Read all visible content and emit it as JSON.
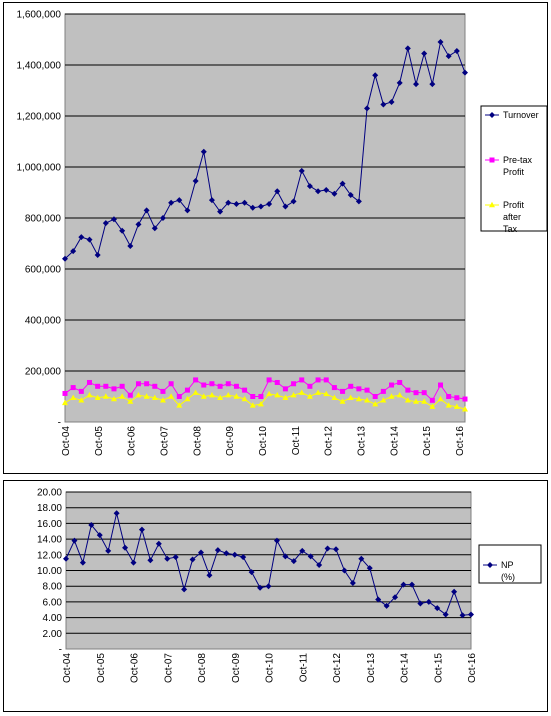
{
  "colors": {
    "plot_bg": "#c0c0c0",
    "grid": "#000000",
    "turnover": "#000080",
    "pretax": "#ff00ff",
    "aftertax": "#ffff00",
    "np": "#000080"
  },
  "chart_data": [
    {
      "type": "line",
      "title": "",
      "xlabel": "",
      "ylabel": "",
      "ylim": [
        0,
        1600000
      ],
      "y_ticks": [
        "-",
        "200,000",
        "400,000",
        "600,000",
        "800,000",
        "1,000,000",
        "1,200,000",
        "1,400,000",
        "1,600,000"
      ],
      "x_ticks": [
        "Oct-04",
        "Oct-05",
        "Oct-06",
        "Oct-07",
        "Oct-08",
        "Oct-09",
        "Oct-10",
        "Oct-11",
        "Oct-12",
        "Oct-13",
        "Oct-14",
        "Oct-15",
        "Oct-16"
      ],
      "grid": true,
      "legend": "right",
      "x_range": [
        0,
        49
      ],
      "series": [
        {
          "name": "Turnover",
          "x": [
            0,
            1,
            2,
            3,
            4,
            5,
            6,
            7,
            8,
            9,
            10,
            11,
            12,
            13,
            14,
            15,
            16,
            17,
            18,
            19,
            20,
            21,
            22,
            23,
            24,
            25,
            26,
            27,
            28,
            29,
            30,
            31,
            32,
            33,
            34,
            35,
            36,
            37,
            38,
            39,
            40,
            41,
            42,
            43,
            44,
            45,
            46,
            47,
            48,
            49
          ],
          "values": [
            640000,
            670000,
            725000,
            715000,
            655000,
            780000,
            795000,
            750000,
            690000,
            775000,
            830000,
            760000,
            800000,
            860000,
            870000,
            830000,
            945000,
            1060000,
            870000,
            825000,
            860000,
            855000,
            860000,
            840000,
            845000,
            855000,
            905000,
            845000,
            865000,
            985000,
            925000,
            905000,
            910000,
            895000,
            935000,
            890000,
            865000,
            1230000,
            1360000,
            1245000,
            1255000,
            1330000,
            1465000,
            1325000,
            1445000,
            1325000,
            1490000,
            1435000,
            1455000,
            1370000
          ]
        },
        {
          "name": "Pre-tax Profit",
          "x": [
            0,
            1,
            2,
            3,
            4,
            5,
            6,
            7,
            8,
            9,
            10,
            11,
            12,
            13,
            14,
            15,
            16,
            17,
            18,
            19,
            20,
            21,
            22,
            23,
            24,
            25,
            26,
            27,
            28,
            29,
            30,
            31,
            32,
            33,
            34,
            35,
            36,
            37,
            38,
            39,
            40,
            41,
            42,
            43,
            44,
            45,
            46,
            47,
            48,
            49
          ],
          "values": [
            112000,
            135000,
            120000,
            155000,
            140000,
            140000,
            130000,
            140000,
            105000,
            150000,
            150000,
            140000,
            120000,
            150000,
            100000,
            125000,
            165000,
            145000,
            150000,
            140000,
            150000,
            140000,
            125000,
            100000,
            100000,
            165000,
            155000,
            130000,
            150000,
            165000,
            140000,
            165000,
            165000,
            135000,
            120000,
            140000,
            130000,
            125000,
            100000,
            120000,
            145000,
            155000,
            125000,
            115000,
            115000,
            85000,
            145000,
            100000,
            95000,
            90000
          ]
        },
        {
          "name": "Profit after Tax",
          "x": [
            0,
            1,
            2,
            3,
            4,
            5,
            6,
            7,
            8,
            9,
            10,
            11,
            12,
            13,
            14,
            15,
            16,
            17,
            18,
            19,
            20,
            21,
            22,
            23,
            24,
            25,
            26,
            27,
            28,
            29,
            30,
            31,
            32,
            33,
            34,
            35,
            36,
            37,
            38,
            39,
            40,
            41,
            42,
            43,
            44,
            45,
            46,
            47,
            48,
            49
          ],
          "values": [
            75000,
            95000,
            85000,
            105000,
            95000,
            100000,
            90000,
            100000,
            80000,
            105000,
            100000,
            95000,
            85000,
            100000,
            65000,
            90000,
            115000,
            100000,
            105000,
            95000,
            105000,
            100000,
            90000,
            65000,
            70000,
            110000,
            105000,
            95000,
            105000,
            115000,
            100000,
            115000,
            110000,
            95000,
            80000,
            95000,
            90000,
            85000,
            70000,
            85000,
            100000,
            105000,
            85000,
            80000,
            80000,
            60000,
            90000,
            65000,
            60000,
            50000
          ]
        }
      ]
    },
    {
      "type": "line",
      "title": "",
      "xlabel": "",
      "ylabel": "",
      "ylim": [
        0,
        20
      ],
      "y_ticks": [
        "-",
        "2.00",
        "4.00",
        "6.00",
        "8.00",
        "10.00",
        "12.00",
        "14.00",
        "16.00",
        "18.00",
        "20.00"
      ],
      "x_ticks": [
        "Oct-04",
        "Oct-05",
        "Oct-06",
        "Oct-07",
        "Oct-08",
        "Oct-09",
        "Oct-10",
        "Oct-11",
        "Oct-12",
        "Oct-13",
        "Oct-14",
        "Oct-15",
        "Oct-16"
      ],
      "grid": true,
      "legend": "right",
      "x_range": [
        0,
        48
      ],
      "series": [
        {
          "name": "NP (%)",
          "x": [
            0,
            1,
            2,
            3,
            4,
            5,
            6,
            7,
            8,
            9,
            10,
            11,
            12,
            13,
            14,
            15,
            16,
            17,
            18,
            19,
            20,
            21,
            22,
            23,
            24,
            25,
            26,
            27,
            28,
            29,
            30,
            31,
            32,
            33,
            34,
            35,
            36,
            37,
            38,
            39,
            40,
            41,
            42,
            43,
            44,
            45,
            46,
            47,
            48
          ],
          "values": [
            11.5,
            13.8,
            11.0,
            15.8,
            14.5,
            12.5,
            17.3,
            12.9,
            11.0,
            15.2,
            11.3,
            13.4,
            11.5,
            11.7,
            7.6,
            11.4,
            12.3,
            9.4,
            12.6,
            12.2,
            12.0,
            11.7,
            9.8,
            7.8,
            8.0,
            13.8,
            11.8,
            11.2,
            12.5,
            11.8,
            10.7,
            12.8,
            12.7,
            10.0,
            8.4,
            11.5,
            10.3,
            6.3,
            5.5,
            6.6,
            8.2,
            8.2,
            5.8,
            6.0,
            5.2,
            4.4,
            7.3,
            4.3,
            4.4
          ]
        }
      ]
    }
  ]
}
